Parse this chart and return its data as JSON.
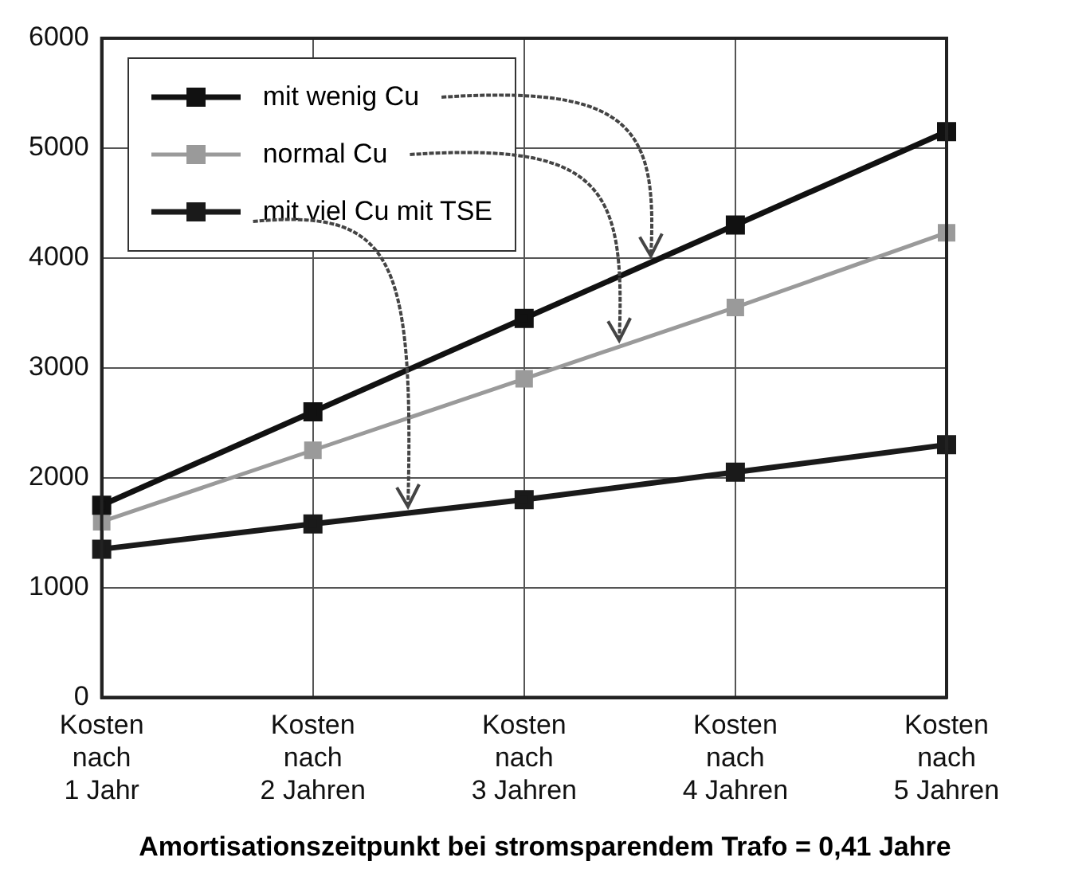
{
  "chart_data": {
    "type": "line",
    "categories": [
      "Kosten\nnach\n1 Jahr",
      "Kosten\nnach\n2 Jahren",
      "Kosten\nnach\n3 Jahren",
      "Kosten\nnach\n4 Jahren",
      "Kosten\nnach\n5 Jahren"
    ],
    "series": [
      {
        "name": "mit wenig Cu",
        "color": "#111111",
        "values": [
          1750,
          2600,
          3450,
          4300,
          5150
        ]
      },
      {
        "name": "normal Cu",
        "color": "#9a9a9a",
        "values": [
          1600,
          2250,
          2900,
          3550,
          4230
        ]
      },
      {
        "name": "mit viel Cu mit TSE",
        "color": "#1a1a1a",
        "values": [
          1350,
          1580,
          1800,
          2050,
          2300
        ]
      }
    ],
    "ylim": [
      0,
      6000
    ],
    "yticks": [
      0,
      1000,
      2000,
      3000,
      4000,
      5000,
      6000
    ],
    "grid": true,
    "legend": "top left",
    "marker": "square",
    "annotations": [
      "Amortisationszeitpunkt bei stromsparendem Trafo = 0,41 Jahre"
    ]
  }
}
